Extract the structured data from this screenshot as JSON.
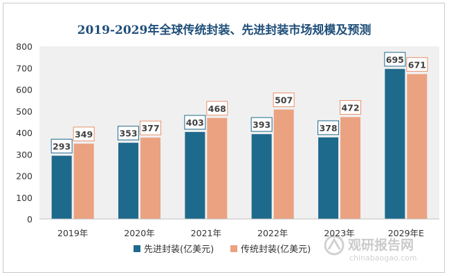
{
  "chart_data": {
    "type": "bar",
    "title": "2019-2029年全球传统封装、先进封装市场规模及预测",
    "categories": [
      "2019年",
      "2020年",
      "2021年",
      "2022年",
      "2023年",
      "2029年E"
    ],
    "series": [
      {
        "name": "先进封装(亿美元)",
        "values": [
          293,
          353,
          403,
          393,
          378,
          695
        ],
        "color": "#1e6a8c",
        "label_border": "#1e6a8c"
      },
      {
        "name": "传统封装(亿美元)",
        "values": [
          349,
          377,
          468,
          507,
          472,
          671
        ],
        "color": "#eba281",
        "label_border": "#e7906b"
      }
    ],
    "ylim": [
      0,
      800
    ],
    "yticks": [
      0,
      100,
      200,
      300,
      400,
      500,
      600,
      700,
      800
    ],
    "grid": false,
    "legend_position": "bottom",
    "colors": {
      "title": "#1f4e79",
      "plot_background": "#f0f0f0",
      "axis_text": "#333333"
    }
  },
  "watermark": {
    "brand": "观研报告网",
    "url": "chinabaogao.com"
  }
}
